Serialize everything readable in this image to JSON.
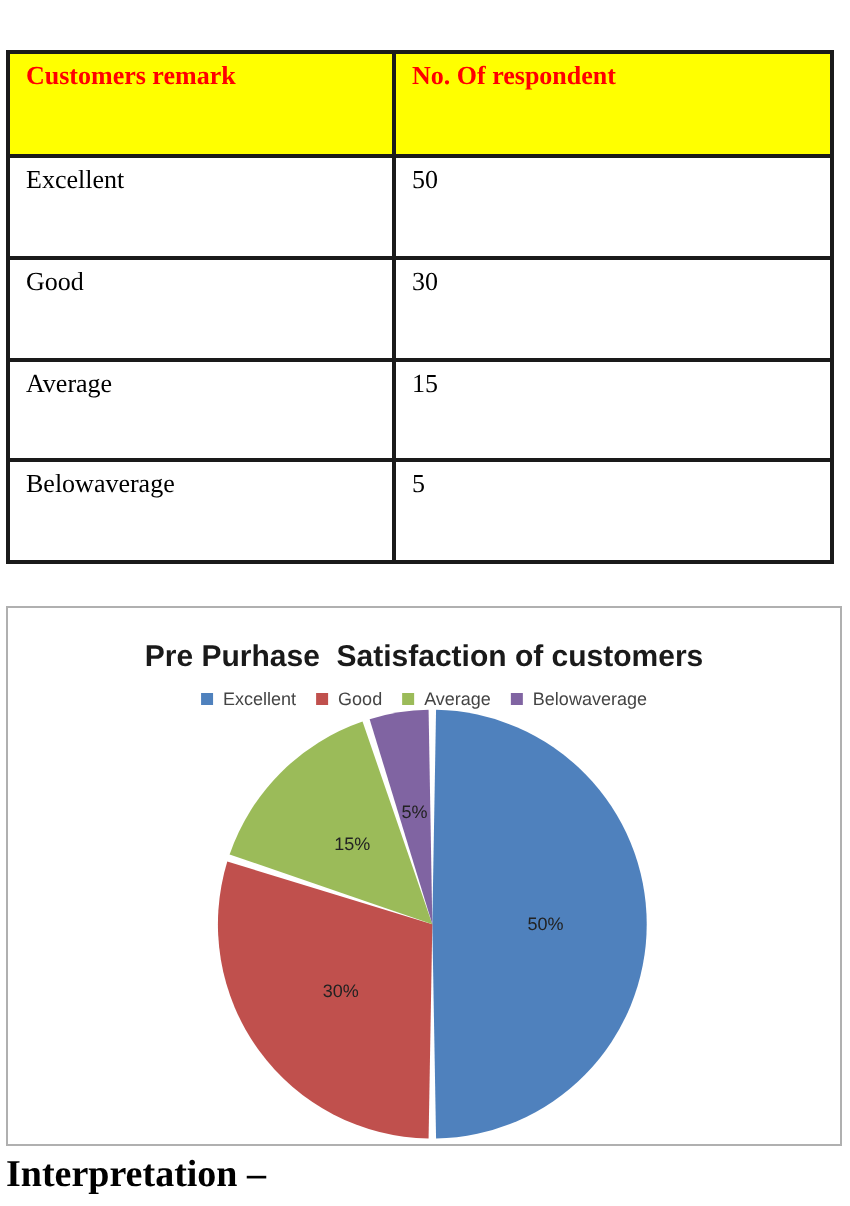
{
  "chart_data": [
    {
      "type": "other",
      "xlabel": "Customers remark",
      "ylabel": "No. Of respondent",
      "categories": [
        "Excellent",
        "Good",
        "Average",
        "Belowaverage"
      ],
      "values": [
        50,
        30,
        15,
        5
      ],
      "data_labels": true
    },
    {
      "type": "pie",
      "title": "Pre Purhase  Satisfaction of customers",
      "categories": [
        "Excellent",
        "Good",
        "Average",
        "Belowaverage"
      ],
      "values": [
        50,
        30,
        15,
        5
      ],
      "colors": [
        "#4f81bd",
        "#c0504d",
        "#9bbb59",
        "#8064a2"
      ],
      "value_labels": [
        "50%",
        "30%",
        "15%",
        "5%"
      ],
      "legend": "top",
      "annotations": [
        "Interpretation –"
      ]
    }
  ]
}
